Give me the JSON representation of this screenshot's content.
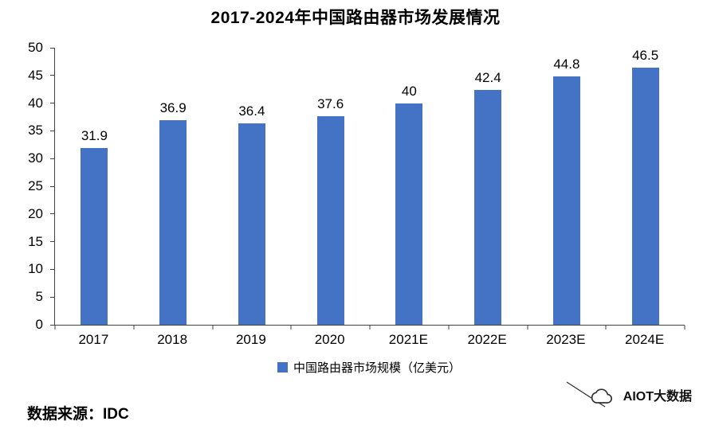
{
  "title": "2017-2024年中国路由器市场发展情况",
  "chart_data": {
    "type": "bar",
    "categories": [
      "2017",
      "2018",
      "2019",
      "2020",
      "2021E",
      "2022E",
      "2023E",
      "2024E"
    ],
    "values": [
      31.9,
      36.9,
      36.4,
      37.6,
      40,
      42.4,
      44.8,
      46.5
    ],
    "title": "2017-2024年中国路由器市场发展情况",
    "xlabel": "",
    "ylabel": "",
    "ylim": [
      0,
      50
    ],
    "yticks": [
      0,
      5,
      10,
      15,
      20,
      25,
      30,
      35,
      40,
      45,
      50
    ],
    "grid": false,
    "bar_color": "#4472C4",
    "legend_position": "bottom",
    "legend": [
      {
        "label": "中国路由器市场规模（亿美元）",
        "color": "#4472C4"
      }
    ]
  },
  "footer": {
    "source": "数据来源：IDC"
  },
  "watermark": {
    "text": "AIOT大数据"
  }
}
